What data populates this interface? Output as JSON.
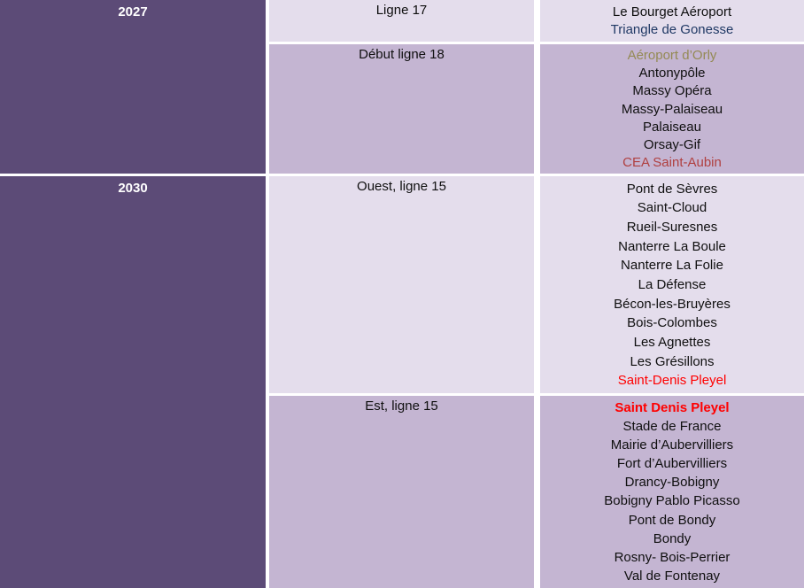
{
  "palette": {
    "year_bg": "#5C4B77",
    "year_text": "#FFFFFF",
    "light_bg": "#E4DDEC",
    "medium_bg": "#C4B5D2",
    "text_default": "#0F0F0F",
    "blue": "#1F3864",
    "tan": "#948A54",
    "dark_red": "#B04040",
    "red": "#FF0000",
    "gap": "#FFFFFF"
  },
  "groups": [
    {
      "year": "2027",
      "rows": [
        {
          "line": "Ligne 17",
          "shade": "light",
          "stations": [
            {
              "name": "Le Bourget Aéroport"
            },
            {
              "name": "Triangle de Gonesse",
              "color": "blue"
            }
          ]
        },
        {
          "line": "Début ligne 18",
          "shade": "medium",
          "stations": [
            {
              "name": "Aéroport d’Orly",
              "color": "tan"
            },
            {
              "name": "Antonypôle"
            },
            {
              "name": "Massy Opéra"
            },
            {
              "name": "Massy-Palaiseau"
            },
            {
              "name": "Palaiseau"
            },
            {
              "name": "Orsay-Gif"
            },
            {
              "name": "CEA Saint-Aubin",
              "color": "dark_red"
            }
          ]
        }
      ]
    },
    {
      "year": "2030",
      "rows": [
        {
          "line": "Ouest, ligne 15",
          "shade": "light",
          "stations": [
            {
              "name": "Pont de Sèvres"
            },
            {
              "name": "Saint-Cloud"
            },
            {
              "name": "Rueil-Suresnes"
            },
            {
              "name": "Nanterre La Boule"
            },
            {
              "name": "Nanterre La Folie"
            },
            {
              "name": "La Défense"
            },
            {
              "name": "Bécon-les-Bruyères"
            },
            {
              "name": "Bois-Colombes"
            },
            {
              "name": "Les Agnettes"
            },
            {
              "name": "Les Grésillons"
            },
            {
              "name": "Saint-Denis Pleyel",
              "color": "red"
            }
          ]
        },
        {
          "line": "Est, ligne 15",
          "shade": "medium",
          "stations": [
            {
              "name": "Saint Denis Pleyel",
              "color": "red",
              "bold": true
            },
            {
              "name": "Stade de France"
            },
            {
              "name": "Mairie d’Aubervilliers"
            },
            {
              "name": "Fort d’Aubervilliers"
            },
            {
              "name": "Drancy-Bobigny"
            },
            {
              "name": "Bobigny Pablo Picasso"
            },
            {
              "name": "Pont de Bondy"
            },
            {
              "name": "Bondy"
            },
            {
              "name": "Rosny- Bois-Perrier"
            },
            {
              "name": "Val de Fontenay"
            }
          ]
        }
      ]
    }
  ]
}
